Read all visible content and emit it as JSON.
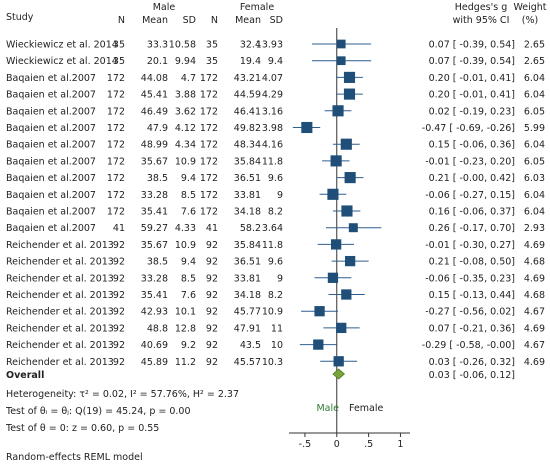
{
  "chart_data": {
    "type": "forest",
    "headers": {
      "study": "Study",
      "group1": "Male",
      "group2": "Female",
      "n1": "N",
      "mean1": "Mean",
      "sd1": "SD",
      "n2": "N",
      "mean2": "Mean",
      "sd2": "SD",
      "effect_line1": "Hedges's g",
      "effect_line2": "with 95% CI",
      "weight_line1": "Weight",
      "weight_line2": "(%)"
    },
    "rows": [
      {
        "study": "Wieckiewicz et al. 2014",
        "n1": "35",
        "mean1": "33.3",
        "sd1": "10.58",
        "n2": "35",
        "mean2": "32.4",
        "sd2": "13.93",
        "g": 0.07,
        "lo": -0.39,
        "hi": 0.54,
        "ci_text": "0.07 [ -0.39,  0.54]",
        "weight": "2.65"
      },
      {
        "study": "Wieckiewicz et al. 2014",
        "n1": "35",
        "mean1": "20.1",
        "sd1": "9.94",
        "n2": "35",
        "mean2": "19.4",
        "sd2": "9.4",
        "g": 0.07,
        "lo": -0.39,
        "hi": 0.54,
        "ci_text": "0.07 [ -0.39,  0.54]",
        "weight": "2.65"
      },
      {
        "study": "Baqaien et al.2007",
        "n1": "172",
        "mean1": "44.08",
        "sd1": "4.7",
        "n2": "172",
        "mean2": "43.21",
        "sd2": "4.07",
        "g": 0.2,
        "lo": -0.01,
        "hi": 0.41,
        "ci_text": "0.20 [ -0.01,  0.41]",
        "weight": "6.04"
      },
      {
        "study": "Baqaien et al.2007",
        "n1": "172",
        "mean1": "45.41",
        "sd1": "3.88",
        "n2": "172",
        "mean2": "44.59",
        "sd2": "4.29",
        "g": 0.2,
        "lo": -0.01,
        "hi": 0.41,
        "ci_text": "0.20 [ -0.01,  0.41]",
        "weight": "6.04"
      },
      {
        "study": "Baqaien et al.2007",
        "n1": "172",
        "mean1": "46.49",
        "sd1": "3.62",
        "n2": "172",
        "mean2": "46.41",
        "sd2": "3.16",
        "g": 0.02,
        "lo": -0.19,
        "hi": 0.23,
        "ci_text": "0.02 [ -0.19,  0.23]",
        "weight": "6.05"
      },
      {
        "study": "Baqaien et al.2007",
        "n1": "172",
        "mean1": "47.9",
        "sd1": "4.12",
        "n2": "172",
        "mean2": "49.82",
        "sd2": "3.98",
        "g": -0.47,
        "lo": -0.69,
        "hi": -0.26,
        "ci_text": "-0.47 [ -0.69, -0.26]",
        "weight": "5.99"
      },
      {
        "study": "Baqaien et al.2007",
        "n1": "172",
        "mean1": "48.99",
        "sd1": "4.34",
        "n2": "172",
        "mean2": "48.34",
        "sd2": "4.16",
        "g": 0.15,
        "lo": -0.06,
        "hi": 0.36,
        "ci_text": "0.15 [ -0.06,  0.36]",
        "weight": "6.04"
      },
      {
        "study": "Baqaien et al.2007",
        "n1": "172",
        "mean1": "35.67",
        "sd1": "10.9",
        "n2": "172",
        "mean2": "35.84",
        "sd2": "11.8",
        "g": -0.01,
        "lo": -0.23,
        "hi": 0.2,
        "ci_text": "-0.01 [ -0.23,  0.20]",
        "weight": "6.05"
      },
      {
        "study": "Baqaien et al.2007",
        "n1": "172",
        "mean1": "38.5",
        "sd1": "9.4",
        "n2": "172",
        "mean2": "36.51",
        "sd2": "9.6",
        "g": 0.21,
        "lo": 0.0,
        "hi": 0.42,
        "ci_text": "0.21 [ -0.00,  0.42]",
        "weight": "6.03"
      },
      {
        "study": "Baqaien et al.2007",
        "n1": "172",
        "mean1": "33.28",
        "sd1": "8.5",
        "n2": "172",
        "mean2": "33.81",
        "sd2": "9",
        "g": -0.06,
        "lo": -0.27,
        "hi": 0.15,
        "ci_text": "-0.06 [ -0.27,  0.15]",
        "weight": "6.04"
      },
      {
        "study": "Baqaien et al.2007",
        "n1": "172",
        "mean1": "35.41",
        "sd1": "7.6",
        "n2": "172",
        "mean2": "34.18",
        "sd2": "8.2",
        "g": 0.16,
        "lo": -0.06,
        "hi": 0.37,
        "ci_text": "0.16 [ -0.06,  0.37]",
        "weight": "6.04"
      },
      {
        "study": "Baqaien et al.2007",
        "n1": "41",
        "mean1": "59.27",
        "sd1": "4.33",
        "n2": "41",
        "mean2": "58.2",
        "sd2": "3.64",
        "g": 0.26,
        "lo": -0.17,
        "hi": 0.7,
        "ci_text": "0.26 [ -0.17,  0.70]",
        "weight": "2.93"
      },
      {
        "study": "Reichender et al. 2013",
        "n1": "92",
        "mean1": "35.67",
        "sd1": "10.9",
        "n2": "92",
        "mean2": "35.84",
        "sd2": "11.8",
        "g": -0.01,
        "lo": -0.3,
        "hi": 0.27,
        "ci_text": "-0.01 [ -0.30,  0.27]",
        "weight": "4.69"
      },
      {
        "study": "Reichender et al. 2013",
        "n1": "92",
        "mean1": "38.5",
        "sd1": "9.4",
        "n2": "92",
        "mean2": "36.51",
        "sd2": "9.6",
        "g": 0.21,
        "lo": -0.08,
        "hi": 0.5,
        "ci_text": "0.21 [ -0.08,  0.50]",
        "weight": "4.68"
      },
      {
        "study": "Reichender et al. 2013",
        "n1": "92",
        "mean1": "33.28",
        "sd1": "8.5",
        "n2": "92",
        "mean2": "33.81",
        "sd2": "9",
        "g": -0.06,
        "lo": -0.35,
        "hi": 0.23,
        "ci_text": "-0.06 [ -0.35,  0.23]",
        "weight": "4.69"
      },
      {
        "study": "Reichender et al. 2013",
        "n1": "92",
        "mean1": "35.41",
        "sd1": "7.6",
        "n2": "92",
        "mean2": "34.18",
        "sd2": "8.2",
        "g": 0.15,
        "lo": -0.13,
        "hi": 0.44,
        "ci_text": "0.15 [ -0.13,  0.44]",
        "weight": "4.68"
      },
      {
        "study": "Reichender et al. 2013",
        "n1": "92",
        "mean1": "42.93",
        "sd1": "10.1",
        "n2": "92",
        "mean2": "45.77",
        "sd2": "10.9",
        "g": -0.27,
        "lo": -0.56,
        "hi": 0.02,
        "ci_text": "-0.27 [ -0.56,  0.02]",
        "weight": "4.67"
      },
      {
        "study": "Reichender et al. 2013",
        "n1": "92",
        "mean1": "48.8",
        "sd1": "12.8",
        "n2": "92",
        "mean2": "47.91",
        "sd2": "11",
        "g": 0.07,
        "lo": -0.21,
        "hi": 0.36,
        "ci_text": "0.07 [ -0.21,  0.36]",
        "weight": "4.69"
      },
      {
        "study": "Reichender et al. 2013",
        "n1": "92",
        "mean1": "40.69",
        "sd1": "9.2",
        "n2": "92",
        "mean2": "43.5",
        "sd2": "10",
        "g": -0.29,
        "lo": -0.58,
        "hi": 0.0,
        "ci_text": "-0.29 [ -0.58, -0.00]",
        "weight": "4.67"
      },
      {
        "study": "Reichender et al. 2013",
        "n1": "92",
        "mean1": "45.89",
        "sd1": "11.2",
        "n2": "92",
        "mean2": "45.57",
        "sd2": "10.3",
        "g": 0.03,
        "lo": -0.26,
        "hi": 0.32,
        "ci_text": "0.03 [ -0.26,  0.32]",
        "weight": "4.69"
      }
    ],
    "overall": {
      "label": "Overall",
      "g": 0.03,
      "lo": -0.06,
      "hi": 0.12,
      "ci_text": "0.03 [ -0.06,  0.12]"
    },
    "stats": {
      "heterogeneity": "Heterogeneity: τ² = 0.02, I² = 57.76%, H² = 2.37",
      "test_theta_equal": "Test of θᵢ = θⱼ: Q(19) = 45.24, p = 0.00",
      "test_theta_zero": "Test of θ = 0: z = 0.60, p = 0.55"
    },
    "favors": {
      "left": "Male",
      "right": "Female"
    },
    "x_ticks": [
      {
        "value": -0.5,
        "label": "-.5"
      },
      {
        "value": 0,
        "label": "0"
      },
      {
        "value": 0.5,
        "label": ".5"
      },
      {
        "value": 1,
        "label": "1"
      }
    ],
    "xlim": [
      -0.75,
      1.15
    ],
    "footnote": "Random-effects REML model",
    "colors": {
      "marker": "#1f4e79",
      "ci_line": "#2f5f8f",
      "diamond": "#7aa33a",
      "diamond_edge": "#4a7a1e",
      "male_label": "#2e7d32"
    }
  }
}
